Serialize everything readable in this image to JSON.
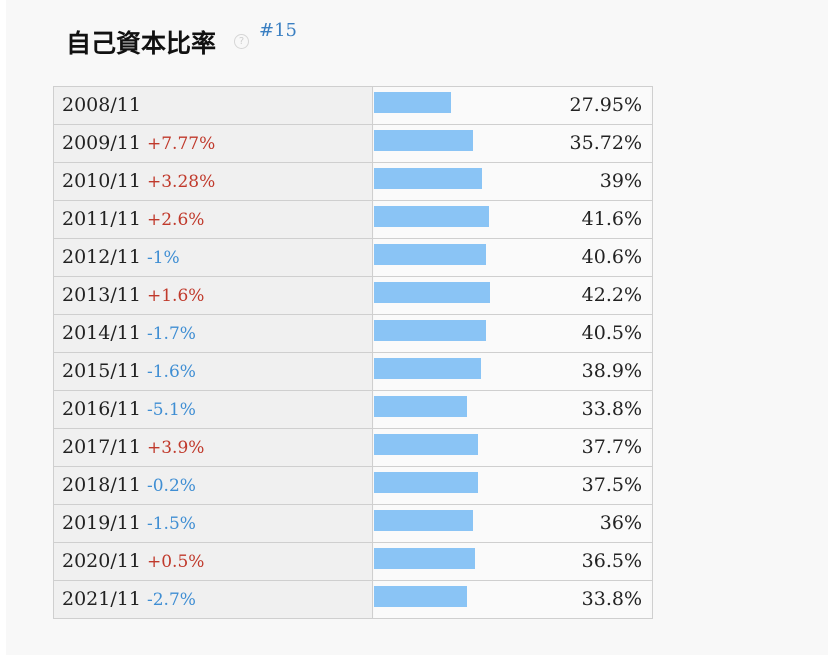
{
  "header": {
    "title": "自己資本比率",
    "help_icon": "?",
    "rank": "#15"
  },
  "colors": {
    "bar": "#8ac4f5",
    "increase": "#c0392b",
    "decrease": "#3f8ed3"
  },
  "chart_data": {
    "type": "bar",
    "orientation": "horizontal",
    "title": "自己資本比率",
    "categories": [
      "2008/11",
      "2009/11",
      "2010/11",
      "2011/11",
      "2012/11",
      "2013/11",
      "2014/11",
      "2015/11",
      "2016/11",
      "2017/11",
      "2018/11",
      "2019/11",
      "2020/11",
      "2021/11"
    ],
    "values": [
      27.95,
      35.72,
      39,
      41.6,
      40.6,
      42.2,
      40.5,
      38.9,
      33.8,
      37.7,
      37.5,
      36,
      36.5,
      33.8
    ],
    "value_labels": [
      "27.95%",
      "35.72%",
      "39%",
      "41.6%",
      "40.6%",
      "42.2%",
      "40.5%",
      "38.9%",
      "33.8%",
      "37.7%",
      "37.5%",
      "36%",
      "36.5%",
      "33.8%"
    ],
    "deltas": [
      "",
      "+7.77%",
      "+3.28%",
      "+2.6%",
      "-1%",
      "+1.6%",
      "-1.7%",
      "-1.6%",
      "-5.1%",
      "+3.9%",
      "-0.2%",
      "-1.5%",
      "+0.5%",
      "-2.7%"
    ],
    "xlim": [
      0,
      100
    ]
  }
}
